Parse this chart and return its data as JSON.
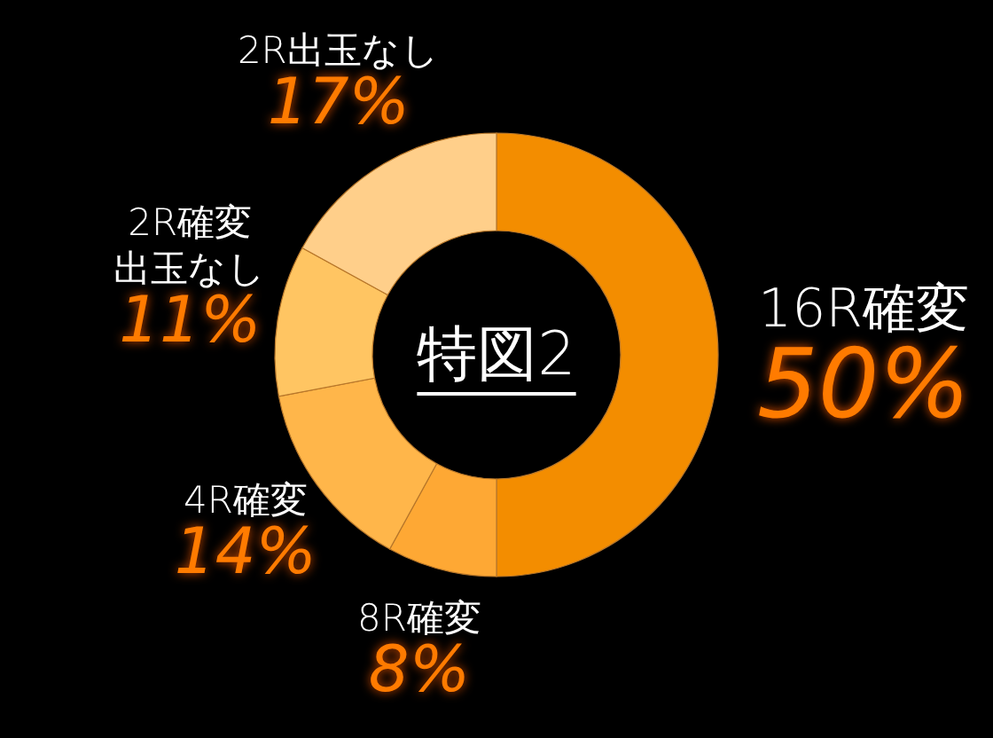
{
  "chart_data": {
    "type": "donut",
    "title": "特図2",
    "categories": [
      "16R確変",
      "8R確変",
      "4R確変",
      "2R確変出玉なし",
      "2R出玉なし"
    ],
    "values": [
      50,
      8,
      14,
      11,
      17
    ],
    "colors": [
      "#f38d00",
      "#fea834",
      "#ffb64a",
      "#ffc562",
      "#ffcf8a"
    ],
    "value_labels": [
      "50%",
      "8%",
      "14%",
      "11%",
      "17%"
    ]
  }
}
